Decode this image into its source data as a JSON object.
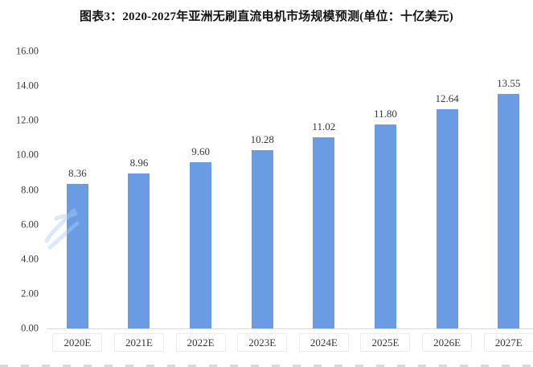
{
  "header": {
    "title": "图表3：2020-2027年亚洲无刷直流电机市场规模预测(单位：十亿美元)"
  },
  "chart_data": {
    "type": "bar",
    "title": "图表3：2020-2027年亚洲无刷直流电机市场规模预测(单位：十亿美元)",
    "unit": "十亿美元",
    "categories": [
      "2020E",
      "2021E",
      "2022E",
      "2023E",
      "2024E",
      "2025E",
      "2026E",
      "2027E"
    ],
    "values": [
      8.36,
      8.96,
      9.6,
      10.28,
      11.02,
      11.8,
      12.64,
      13.55
    ],
    "value_labels": [
      "8.36",
      "8.96",
      "9.60",
      "10.28",
      "11.02",
      "11.80",
      "12.64",
      "13.55"
    ],
    "xlabel": "",
    "ylabel": "",
    "ylim": [
      0,
      16
    ],
    "y_tick_step": 2,
    "y_tick_labels": [
      "0.00",
      "2.00",
      "4.00",
      "6.00",
      "8.00",
      "10.00",
      "12.00",
      "14.00",
      "16.00"
    ],
    "grid": false,
    "legend": "none",
    "bar_color": "#699CE3",
    "axis_line_color": "#dcdcdc",
    "label_color": "#373737"
  }
}
